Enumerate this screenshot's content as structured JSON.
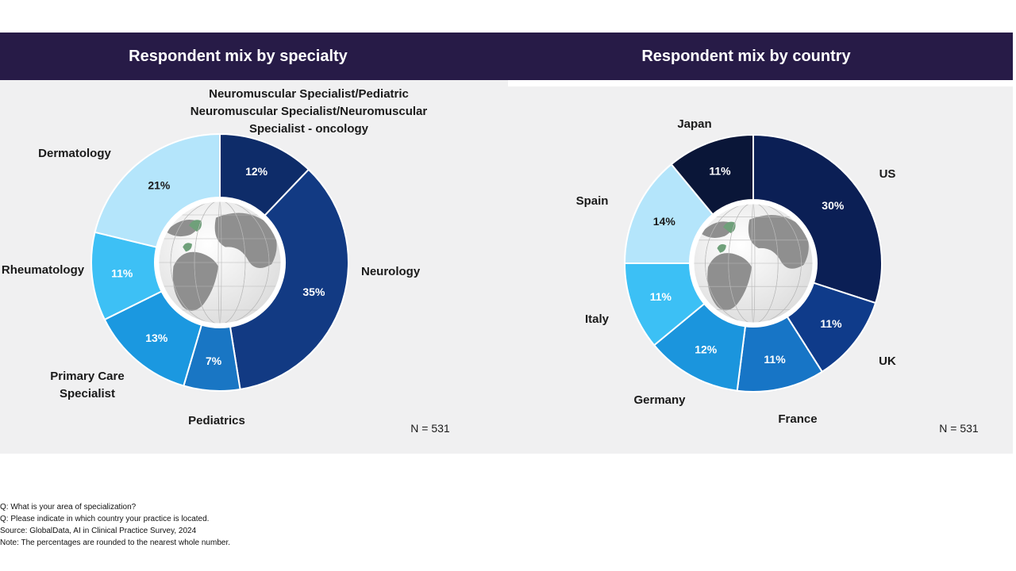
{
  "chart_data": [
    {
      "type": "pie",
      "variant": "donut",
      "title": "Respondent mix by specialty",
      "categories": [
        "Neuromuscular Specialist/Pediatric Neuromuscular Specialist/Neuromuscular Specialist - oncology",
        "Neurology",
        "Pediatrics",
        "Primary Care Specialist",
        "Rheumatology",
        "Dermatology"
      ],
      "label_lines": [
        [
          "Neuromuscular Specialist/Pediatric",
          "Neuromuscular Specialist/Neuromuscular",
          "Specialist - oncology"
        ],
        [
          "Neurology"
        ],
        [
          "Pediatrics"
        ],
        [
          "Primary Care",
          "Specialist"
        ],
        [
          "Rheumatology"
        ],
        [
          "Dermatology"
        ]
      ],
      "values": [
        12,
        35,
        7,
        13,
        11,
        21
      ],
      "value_labels": [
        "12%",
        "35%",
        "7%",
        "13%",
        "11%",
        "21%"
      ],
      "colors": [
        "#0e2c69",
        "#123a83",
        "#1976c4",
        "#1b98e0",
        "#3dc0f5",
        "#b4e5fb"
      ],
      "note": "N = 531"
    },
    {
      "type": "pie",
      "variant": "donut",
      "title": "Respondent mix by country",
      "categories": [
        "US",
        "UK",
        "France",
        "Germany",
        "Italy",
        "Spain",
        "Japan"
      ],
      "label_lines": [
        [
          "US"
        ],
        [
          "UK"
        ],
        [
          "France"
        ],
        [
          "Germany"
        ],
        [
          "Italy"
        ],
        [
          "Spain"
        ],
        [
          "Japan"
        ]
      ],
      "values": [
        30,
        11,
        11,
        12,
        11,
        14,
        11
      ],
      "value_labels": [
        "30%",
        "11%",
        "11%",
        "12%",
        "11%",
        "14%",
        "11%"
      ],
      "colors": [
        "#0b1f55",
        "#0f3b8a",
        "#1775c6",
        "#1b95dd",
        "#3cc0f5",
        "#b4e5fb",
        "#0a1638"
      ],
      "note": "N = 531"
    }
  ],
  "footnotes": [
    "Q: What is your area of specialization?",
    "Q: Please indicate in which country your practice is located.",
    "Source: GlobalData, AI in Clinical Practice Survey, 2024",
    "Note: The percentages are rounded to the nearest whole number."
  ]
}
